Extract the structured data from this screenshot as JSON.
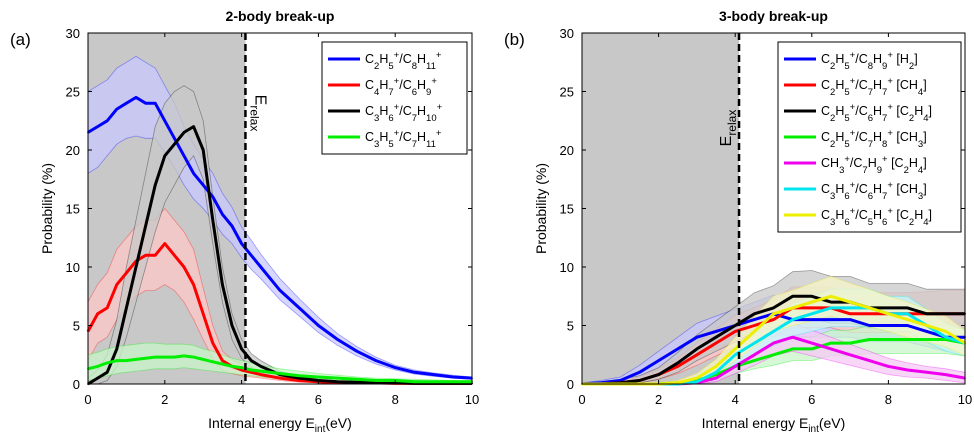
{
  "figure": {
    "panels": [
      {
        "label": "(a)",
        "title": "2-body break-up",
        "ylabel": "Probability (%)",
        "xlabel_main": "Internal energy E",
        "xlabel_sub": "int",
        "xlabel_tail": "(eV)",
        "vline_label_main": "E",
        "vline_label_sub": "relax"
      },
      {
        "label": "(b)",
        "title": "3-body break-up",
        "ylabel": "Probability (%)",
        "xlabel_main": "Internal energy E",
        "xlabel_sub": "int",
        "xlabel_tail": "(eV)",
        "vline_label_main": "E",
        "vline_label_sub": "relax"
      }
    ]
  },
  "chart_data": [
    {
      "type": "line",
      "title": "2-body break-up",
      "panel_label": "(a)",
      "xlabel": "Internal energy E_int(eV)",
      "ylabel": "Probability (%)",
      "xlim": [
        0,
        10
      ],
      "ylim": [
        0,
        30
      ],
      "xticks": [
        0,
        2,
        4,
        6,
        8,
        10
      ],
      "yticks": [
        0,
        5,
        10,
        15,
        20,
        25,
        30
      ],
      "grid": false,
      "legend_position": "top-right",
      "shaded_region": [
        0,
        4.1
      ],
      "vline": {
        "x": 4.1,
        "label": "E_relax"
      },
      "x": [
        0,
        0.25,
        0.5,
        0.75,
        1,
        1.25,
        1.5,
        1.75,
        2,
        2.25,
        2.5,
        2.75,
        3,
        3.25,
        3.5,
        3.75,
        4,
        4.25,
        4.5,
        5,
        5.5,
        6,
        6.5,
        7,
        7.5,
        8,
        8.5,
        9,
        9.5,
        10
      ],
      "series": [
        {
          "name": "C2H5+/C8H11+",
          "color": "#0000ff",
          "band_color": "#c8c8ff",
          "values": [
            21.5,
            22,
            22.5,
            23.5,
            24,
            24.5,
            24,
            24,
            22.5,
            21,
            19.5,
            18,
            17,
            16,
            14.5,
            13.5,
            12,
            11,
            10,
            8,
            6.5,
            5,
            3.8,
            2.8,
            2,
            1.4,
            1,
            0.8,
            0.6,
            0.5
          ],
          "lower": [
            18,
            18.5,
            19.5,
            20.5,
            21,
            21.2,
            21,
            21,
            19.8,
            18.5,
            17,
            15.8,
            15,
            14,
            12.8,
            12,
            10.8,
            9.8,
            9,
            7.2,
            5.8,
            4.4,
            3.3,
            2.4,
            1.7,
            1.2,
            0.85,
            0.65,
            0.5,
            0.4
          ],
          "upper": [
            25,
            25.5,
            26,
            27,
            27.5,
            28,
            27.5,
            27,
            25.5,
            24,
            22,
            20.5,
            19.2,
            18,
            16.3,
            15.1,
            13.4,
            12.3,
            11.1,
            9,
            7.3,
            5.7,
            4.3,
            3.2,
            2.3,
            1.6,
            1.2,
            0.95,
            0.75,
            0.6
          ]
        },
        {
          "name": "C4H7+/C6H9+",
          "color": "#ff0000",
          "band_color": "#ffc8c8",
          "values": [
            4.5,
            6,
            6.5,
            8.5,
            9.5,
            10.5,
            11,
            11,
            12,
            11,
            10,
            8.5,
            6,
            3.5,
            2,
            1.5,
            1.2,
            1,
            0.8,
            0.5,
            0.3,
            0.2,
            0.1,
            0.1,
            0.1,
            0.05,
            0.05,
            0.05,
            0.05,
            0.05
          ],
          "lower": [
            2,
            3.5,
            4,
            5.5,
            6.5,
            7.5,
            8,
            8,
            8.5,
            8,
            7,
            5.5,
            3.8,
            2.2,
            1.2,
            0.9,
            0.7,
            0.6,
            0.5,
            0.3,
            0.15,
            0.1,
            0.05,
            0.05,
            0.05,
            0,
            0,
            0,
            0,
            0
          ],
          "upper": [
            7,
            8.5,
            9.5,
            11.5,
            12.5,
            13.5,
            14,
            14,
            15,
            14,
            13,
            11.5,
            8.2,
            5,
            2.8,
            2.1,
            1.7,
            1.4,
            1.1,
            0.7,
            0.45,
            0.3,
            0.2,
            0.15,
            0.15,
            0.1,
            0.1,
            0.1,
            0.1,
            0.1
          ]
        },
        {
          "name": "C3H6+/C7H10+",
          "color": "#000000",
          "band_color": "#c8c8c8",
          "values": [
            0,
            0.5,
            1,
            3,
            6.5,
            10,
            13.5,
            17,
            19.5,
            20.5,
            21.5,
            22,
            20,
            14,
            8.5,
            5,
            3,
            2,
            1.5,
            0.8,
            0.5,
            0.3,
            0.2,
            0.15,
            0.1,
            0.1,
            0.05,
            0.05,
            0.05,
            0.05
          ],
          "lower": [
            0,
            0,
            0.3,
            1.5,
            4,
            7,
            10,
            13,
            15.5,
            17,
            18.5,
            19.5,
            17.5,
            12,
            7,
            3.8,
            2.2,
            1.4,
            1,
            0.5,
            0.3,
            0.15,
            0.1,
            0.05,
            0,
            0,
            0,
            0,
            0,
            0
          ],
          "upper": [
            0.5,
            1.2,
            2.5,
            5.5,
            10,
            14,
            18,
            22,
            24,
            25,
            25.5,
            25,
            22.5,
            16,
            10,
            6,
            3.8,
            2.6,
            2,
            1.1,
            0.7,
            0.45,
            0.3,
            0.25,
            0.2,
            0.15,
            0.1,
            0.1,
            0.1,
            0.1
          ]
        },
        {
          "name": "C3H5+/C7H11+",
          "color": "#00ee00",
          "band_color": "#c8f5c8",
          "values": [
            1.3,
            1.5,
            1.8,
            2,
            2,
            2.1,
            2.2,
            2.3,
            2.3,
            2.3,
            2.4,
            2.3,
            2.1,
            1.9,
            1.7,
            1.5,
            1.4,
            1.2,
            1.1,
            0.9,
            0.7,
            0.6,
            0.5,
            0.4,
            0.3,
            0.3,
            0.2,
            0.2,
            0.2,
            0.2
          ],
          "lower": [
            0.3,
            0.5,
            0.7,
            0.9,
            1,
            1.1,
            1.2,
            1.3,
            1.3,
            1.3,
            1.4,
            1.3,
            1.2,
            1.1,
            1,
            0.9,
            0.8,
            0.7,
            0.6,
            0.5,
            0.4,
            0.3,
            0.25,
            0.2,
            0.15,
            0.15,
            0.1,
            0.1,
            0.1,
            0.1
          ],
          "upper": [
            2.5,
            2.7,
            3,
            3.2,
            3.3,
            3.4,
            3.5,
            3.5,
            3.4,
            3.4,
            3.4,
            3.3,
            3,
            2.8,
            2.5,
            2.2,
            2,
            1.8,
            1.6,
            1.3,
            1.1,
            0.9,
            0.75,
            0.6,
            0.5,
            0.45,
            0.4,
            0.35,
            0.3,
            0.3
          ]
        }
      ]
    },
    {
      "type": "line",
      "title": "3-body break-up",
      "panel_label": "(b)",
      "xlabel": "Internal energy E_int(eV)",
      "ylabel": "Probability (%)",
      "xlim": [
        0,
        10
      ],
      "ylim": [
        0,
        30
      ],
      "xticks": [
        0,
        2,
        4,
        6,
        8,
        10
      ],
      "yticks": [
        0,
        5,
        10,
        15,
        20,
        25,
        30
      ],
      "grid": false,
      "legend_position": "top-right",
      "shaded_region": [
        0,
        4.1
      ],
      "vline": {
        "x": 4.1,
        "label": "E_relax"
      },
      "x": [
        0,
        0.5,
        1,
        1.5,
        2,
        2.5,
        3,
        3.5,
        4,
        4.5,
        5,
        5.5,
        6,
        6.5,
        7,
        7.5,
        8,
        8.5,
        9,
        9.5,
        10
      ],
      "series": [
        {
          "name": "C2H5+/C8H9+ [H2]",
          "color": "#0000ff",
          "band_color": "#c8c8ff",
          "values": [
            0,
            0.1,
            0.3,
            1,
            2,
            3,
            4,
            4.5,
            5,
            5.5,
            6,
            5.5,
            5.5,
            5.5,
            5.5,
            5,
            5,
            5,
            4.5,
            4,
            4
          ],
          "lower": [
            0,
            0,
            0.1,
            0.5,
            1.2,
            2,
            2.8,
            3.2,
            3.6,
            4,
            4.4,
            4,
            4,
            4,
            4,
            3.6,
            3.6,
            3.6,
            3.2,
            2.8,
            2.8
          ],
          "upper": [
            0.1,
            0.3,
            0.6,
            1.6,
            2.8,
            4,
            5.2,
            5.8,
            6.4,
            7,
            7.6,
            7,
            7,
            7,
            7,
            6.4,
            6.4,
            6.4,
            5.8,
            5.2,
            5.2
          ]
        },
        {
          "name": "C2H5+/C7H7+ [CH4]",
          "color": "#ff0000",
          "band_color": "#ffc8c8",
          "values": [
            0,
            0,
            0.1,
            0.3,
            0.8,
            1.5,
            2.5,
            3.5,
            4.5,
            5,
            5.5,
            6.5,
            6.5,
            6.5,
            6,
            6,
            6,
            6,
            6,
            6,
            6
          ],
          "lower": [
            0,
            0,
            0,
            0.1,
            0.4,
            0.9,
            1.6,
            2.4,
            3.2,
            3.6,
            4,
            4.8,
            4.8,
            4.8,
            4.4,
            4.4,
            4.4,
            4.4,
            4.2,
            4.2,
            4.2
          ],
          "upper": [
            0.1,
            0.1,
            0.3,
            0.6,
            1.3,
            2.2,
            3.5,
            4.7,
            5.9,
            6.5,
            7.2,
            8.3,
            8.3,
            8.3,
            7.7,
            7.8,
            7.8,
            7.8,
            7.9,
            8,
            8
          ]
        },
        {
          "name": "C2H5+/C6H7+ [C2H4]",
          "color": "#000000",
          "band_color": "#c8c8c8",
          "values": [
            0,
            0,
            0.1,
            0.3,
            0.8,
            1.8,
            3,
            4,
            5,
            6,
            6.5,
            7.5,
            7.5,
            7,
            7,
            6.5,
            6.5,
            6.5,
            6,
            6,
            6
          ],
          "lower": [
            0,
            0,
            0,
            0.1,
            0.4,
            1,
            2,
            2.8,
            3.6,
            4.4,
            4.8,
            5.6,
            5.6,
            5.2,
            5.2,
            4.8,
            4.8,
            4.8,
            4.4,
            4.4,
            4.4
          ],
          "upper": [
            0.1,
            0.2,
            0.4,
            0.7,
            1.4,
            2.7,
            4.2,
            5.4,
            6.6,
            7.8,
            8.4,
            9.6,
            9.7,
            9.2,
            9.2,
            8.6,
            8.6,
            8.6,
            8.1,
            8.1,
            8.1
          ]
        },
        {
          "name": "C2H5+/C7H8+ [CH3]",
          "color": "#00ee00",
          "band_color": "#c8f5c8",
          "values": [
            0,
            0,
            0,
            0,
            0,
            0.1,
            0.3,
            0.8,
            1.5,
            2,
            2.5,
            3,
            3,
            3.5,
            3.5,
            3.8,
            3.8,
            3.8,
            3.8,
            3.8,
            3.5
          ],
          "lower": [
            0,
            0,
            0,
            0,
            0,
            0,
            0.1,
            0.4,
            0.9,
            1.3,
            1.6,
            2,
            2,
            2.4,
            2.4,
            2.6,
            2.6,
            2.6,
            2.6,
            2.6,
            2.4
          ],
          "upper": [
            0,
            0,
            0,
            0,
            0.1,
            0.2,
            0.5,
            1.2,
            2.1,
            2.7,
            3.4,
            4,
            4,
            4.6,
            4.6,
            5,
            5,
            5,
            5,
            5,
            4.6
          ]
        },
        {
          "name": "CH3+/C7H9+ [C2H4]",
          "color": "#ee00ee",
          "band_color": "#f5c8f5",
          "values": [
            0,
            0,
            0,
            0,
            0,
            0,
            0.1,
            0.5,
            1.5,
            2.5,
            3.5,
            4,
            3.5,
            3,
            2.5,
            2,
            1.5,
            1.2,
            1,
            0.8,
            0.5
          ],
          "lower": [
            0,
            0,
            0,
            0,
            0,
            0,
            0,
            0.2,
            0.9,
            1.6,
            2.4,
            2.8,
            2.4,
            2,
            1.6,
            1.2,
            0.8,
            0.6,
            0.5,
            0.3,
            0.1
          ],
          "upper": [
            0,
            0,
            0,
            0,
            0,
            0,
            0.3,
            0.9,
            2.1,
            3.4,
            4.6,
            5.2,
            4.6,
            4,
            3.4,
            2.8,
            2.2,
            1.8,
            1.5,
            1.3,
            1
          ]
        },
        {
          "name": "C3H6+/C6H7+ [CH3]",
          "color": "#00e5ee",
          "band_color": "#c8f5f5",
          "values": [
            0,
            0,
            0,
            0,
            0,
            0,
            0.2,
            1,
            2.5,
            3.5,
            4.5,
            5.5,
            6,
            6.5,
            6.5,
            6.5,
            6,
            6,
            5,
            4,
            3.5
          ],
          "lower": [
            0,
            0,
            0,
            0,
            0,
            0,
            0.1,
            0.6,
            1.7,
            2.5,
            3.3,
            4.1,
            4.5,
            4.9,
            4.9,
            4.9,
            4.5,
            4.5,
            3.6,
            2.8,
            2.4
          ],
          "upper": [
            0,
            0,
            0,
            0,
            0,
            0,
            0.4,
            1.5,
            3.3,
            4.5,
            5.7,
            6.9,
            7.5,
            8.1,
            8.1,
            8.1,
            7.5,
            7.5,
            6.4,
            5.2,
            4.6
          ]
        },
        {
          "name": "C3H6+/C5H6+ [C2H4]",
          "color": "#eeee00",
          "band_color": "#f5f5c8",
          "values": [
            0,
            0,
            0,
            0,
            0,
            0.1,
            0.5,
            1.5,
            3,
            4.5,
            6,
            6.5,
            7,
            7.5,
            7,
            6.5,
            6,
            5.5,
            5,
            4.5,
            3.5
          ],
          "lower": [
            0,
            0,
            0,
            0,
            0,
            0,
            0.2,
            0.9,
            2,
            3.2,
            4.5,
            5,
            5.4,
            5.8,
            5.4,
            4.9,
            4.5,
            4,
            3.6,
            3.2,
            2.4
          ],
          "upper": [
            0,
            0,
            0,
            0,
            0.1,
            0.3,
            0.9,
            2.1,
            4,
            5.8,
            7.5,
            8,
            8.6,
            9.2,
            8.6,
            8.1,
            7.5,
            7,
            6.4,
            5.8,
            4.6
          ]
        }
      ]
    }
  ]
}
